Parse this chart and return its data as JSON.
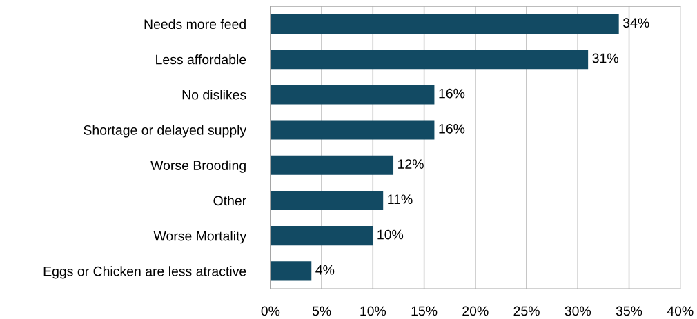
{
  "chart_data": {
    "type": "bar",
    "orientation": "horizontal",
    "categories": [
      "Needs more feed",
      "Less affordable",
      "No dislikes",
      "Shortage or delayed supply",
      "Worse Brooding",
      "Other",
      "Worse Mortality",
      "Eggs or Chicken are less atractive"
    ],
    "values": [
      34,
      31,
      16,
      16,
      12,
      11,
      10,
      4
    ],
    "value_labels": [
      "34%",
      "31%",
      "16%",
      "16%",
      "12%",
      "11%",
      "10%",
      "4%"
    ],
    "color": "#124a63",
    "xlim": [
      0,
      40
    ],
    "xticks": [
      {
        "value": 0,
        "label": "0%"
      },
      {
        "value": 5,
        "label": "5%"
      },
      {
        "value": 10,
        "label": "10%"
      },
      {
        "value": 15,
        "label": "15%"
      },
      {
        "value": 20,
        "label": "20%"
      },
      {
        "value": 25,
        "label": "25%"
      },
      {
        "value": 30,
        "label": "30%"
      },
      {
        "value": 35,
        "label": "35%"
      },
      {
        "value": 40,
        "label": "40%"
      }
    ],
    "grid": "x",
    "legend": false
  }
}
